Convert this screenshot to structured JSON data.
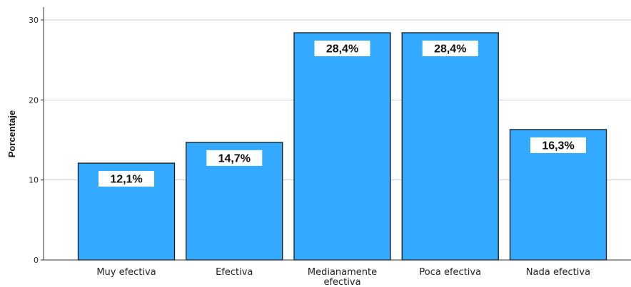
{
  "chart_data": {
    "type": "bar",
    "categories": [
      "Muy efectiva",
      "Efectiva",
      "Medianamente efectiva",
      "Poca efectiva",
      "Nada efectiva"
    ],
    "category_labels": [
      [
        "Muy efectiva"
      ],
      [
        "Efectiva"
      ],
      [
        "Medianamente",
        "efectiva"
      ],
      [
        "Poca efectiva"
      ],
      [
        "Nada efectiva"
      ]
    ],
    "values": [
      12.1,
      14.7,
      28.4,
      28.4,
      16.3
    ],
    "data_labels": [
      "12,1%",
      "14,7%",
      "28,4%",
      "28,4%",
      "16,3%"
    ],
    "ylabel": "Porcentaje",
    "xlabel": "",
    "ylim": [
      0,
      30
    ],
    "yticks": [
      0,
      10,
      20,
      30
    ],
    "grid": true,
    "bar_color": "#33aaff",
    "bar_edge_color": "#1a1a1a",
    "grid_color": "#cfcfcf",
    "label_box_color": "#ffffff"
  }
}
